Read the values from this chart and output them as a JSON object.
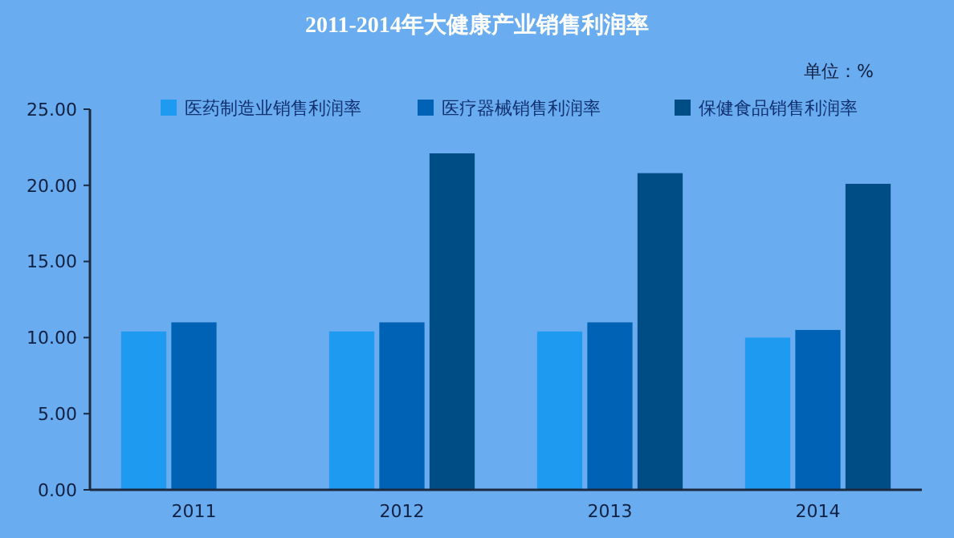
{
  "chart_data": {
    "type": "bar",
    "title": "2011-2014年大健康产业销售利润率",
    "annotations": [
      "单位：%"
    ],
    "categories": [
      "2011",
      "2012",
      "2013",
      "2014"
    ],
    "series": [
      {
        "name": "医药制造业销售利润率",
        "color": "#1e9af0",
        "values": [
          10.4,
          10.4,
          10.4,
          10.0
        ]
      },
      {
        "name": "医疗器械销售利润率",
        "color": "#0062b4",
        "values": [
          11.0,
          11.0,
          11.0,
          10.5
        ]
      },
      {
        "name": "保健食品销售利润率",
        "color": "#004c84",
        "values": [
          null,
          22.1,
          20.8,
          20.1
        ]
      }
    ],
    "ylim": [
      0,
      25
    ],
    "yticks": [
      {
        "value": 0,
        "label": "0.00"
      },
      {
        "value": 5,
        "label": "5.00"
      },
      {
        "value": 10,
        "label": "10.00"
      },
      {
        "value": 15,
        "label": "15.00"
      },
      {
        "value": 20,
        "label": "20.00"
      },
      {
        "value": 25,
        "label": "25.00"
      }
    ],
    "legend": "top",
    "grid": false
  }
}
